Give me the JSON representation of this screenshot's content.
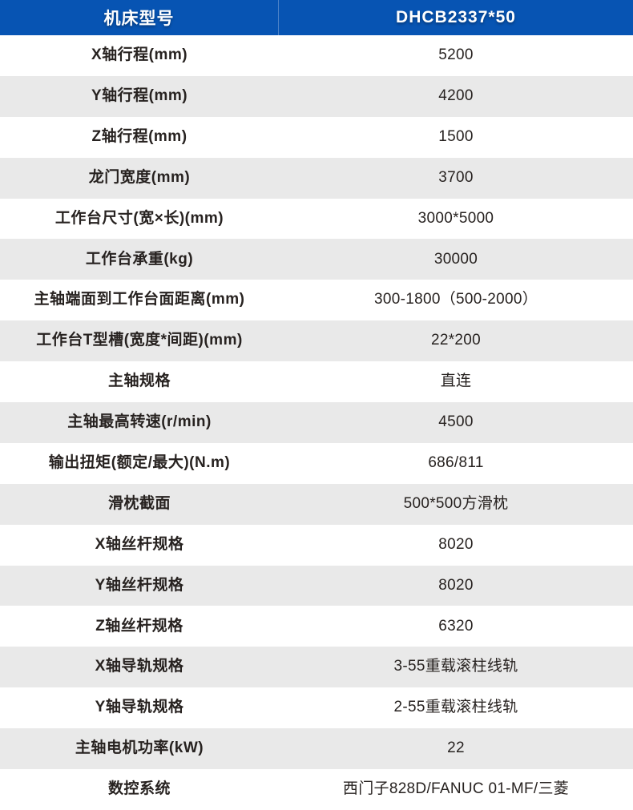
{
  "table": {
    "header": {
      "model_label": "机床型号",
      "model_value": "DHCB2337*50"
    },
    "rows": [
      {
        "label": "X轴行程(mm)",
        "value": "5200"
      },
      {
        "label": "Y轴行程(mm)",
        "value": "4200"
      },
      {
        "label": "Z轴行程(mm)",
        "value": "1500"
      },
      {
        "label": "龙门宽度(mm)",
        "value": "3700"
      },
      {
        "label": "工作台尺寸(宽×长)(mm)",
        "value": "3000*5000"
      },
      {
        "label": "工作台承重(kg)",
        "value": "30000"
      },
      {
        "label": "主轴端面到工作台面距离(mm)",
        "value": "300-1800（500-2000）"
      },
      {
        "label": "工作台T型槽(宽度*间距)(mm)",
        "value": "22*200"
      },
      {
        "label": "主轴规格",
        "value": "直连"
      },
      {
        "label": "主轴最高转速(r/min)",
        "value": "4500"
      },
      {
        "label": "输出扭矩(额定/最大)(N.m)",
        "value": "686/811"
      },
      {
        "label": "滑枕截面",
        "value": "500*500方滑枕"
      },
      {
        "label": "X轴丝杆规格",
        "value": "8020"
      },
      {
        "label": "Y轴丝杆规格",
        "value": "8020"
      },
      {
        "label": "Z轴丝杆规格",
        "value": "6320"
      },
      {
        "label": "X轴导轨规格",
        "value": "3-55重载滚柱线轨"
      },
      {
        "label": "Y轴导轨规格",
        "value": "2-55重载滚柱线轨"
      },
      {
        "label": "主轴电机功率(kW)",
        "value": "22"
      },
      {
        "label": "数控系统",
        "value": "西门子828D/FANUC 01-MF/三菱"
      }
    ]
  },
  "colors": {
    "header_bg": "#0754b3",
    "header_text": "#ffffff",
    "row_bg": "#ffffff",
    "row_alt_bg": "#e9e9e9",
    "text": "#272220"
  }
}
